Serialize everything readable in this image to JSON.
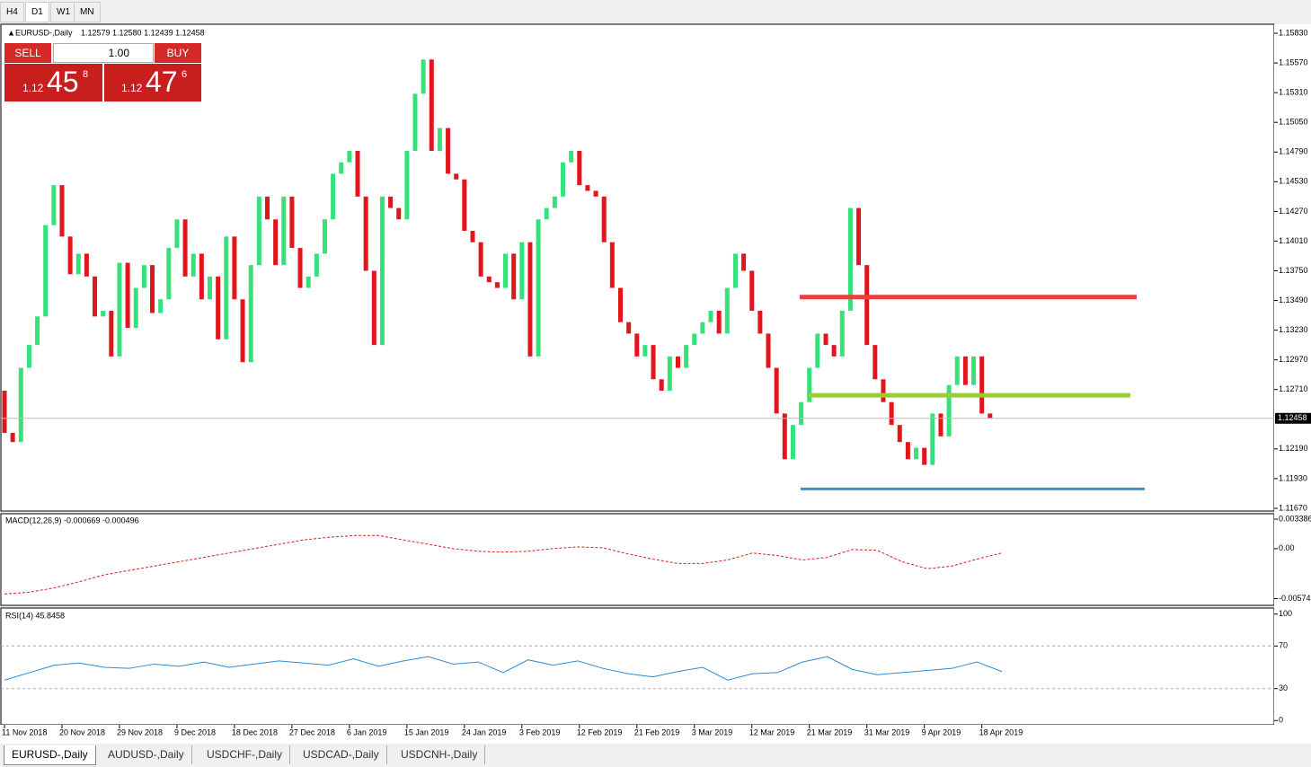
{
  "toolbar": {
    "timeframes": [
      "H4",
      "D1",
      "W1",
      "MN"
    ]
  },
  "trade_panel": {
    "sell": "SELL",
    "buy": "BUY",
    "lot": "1.00",
    "sell_prefix": "1.12",
    "sell_big": "45",
    "sell_sup": "8",
    "buy_prefix": "1.12",
    "buy_big": "47",
    "buy_sup": "6"
  },
  "tabs": [
    "EURUSD-,Daily",
    "AUDUSD-,Daily",
    "USDCHF-,Daily",
    "USDCAD-,Daily",
    "USDCNH-,Daily"
  ],
  "chart_data": [
    {
      "type": "candlestick",
      "title": "EURUSD-,Daily",
      "info": "1.12579 1.12580 1.12439 1.12458",
      "up_color": "#33e27a",
      "down_color": "#e0161c",
      "categories": [
        "11 Nov 2018",
        null,
        null,
        null,
        null,
        null,
        null,
        "20 Nov 2018",
        null,
        null,
        null,
        null,
        null,
        null,
        "29 Nov 2018",
        null,
        null,
        null,
        null,
        null,
        null,
        "9 Dec 2018",
        null,
        null,
        null,
        null,
        null,
        null,
        "18 Dec 2018",
        null,
        null,
        null,
        null,
        null,
        null,
        "27 Dec 2018",
        null,
        null,
        null,
        null,
        null,
        null,
        "6 Jan 2019",
        null,
        null,
        null,
        null,
        null,
        null,
        "15 Jan 2019",
        null,
        null,
        null,
        null,
        null,
        null,
        "24 Jan 2019",
        null,
        null,
        null,
        null,
        null,
        null,
        "3 Feb 2019",
        null,
        null,
        null,
        null,
        null,
        null,
        "12 Feb 2019",
        null,
        null,
        null,
        null,
        null,
        null,
        "21 Feb 2019",
        null,
        null,
        null,
        null,
        null,
        null,
        "3 Mar 2019",
        null,
        null,
        null,
        null,
        null,
        null,
        "12 Mar 2019",
        null,
        null,
        null,
        null,
        null,
        null,
        "21 Mar 2019",
        null,
        null,
        null,
        null,
        null,
        null,
        "31 Mar 2019",
        null,
        null,
        null,
        null,
        null,
        null,
        "9 Apr 2019",
        null,
        null,
        null,
        null,
        null,
        null,
        "18 Apr 2019",
        null
      ],
      "open": [
        1.127,
        1.1233,
        1.1225,
        1.129,
        1.131,
        1.1335,
        1.1415,
        1.145,
        1.1405,
        1.1372,
        1.139,
        1.137,
        1.1335,
        1.134,
        1.13,
        1.1382,
        1.1325,
        1.136,
        1.138,
        1.1338,
        1.135,
        1.1395,
        1.142,
        1.137,
        1.139,
        1.135,
        1.137,
        1.1315,
        1.1405,
        1.135,
        1.1295,
        1.138,
        1.144,
        1.142,
        1.138,
        1.144,
        1.1395,
        1.136,
        1.137,
        1.139,
        1.142,
        1.146,
        1.147,
        1.148,
        1.144,
        1.1375,
        1.131,
        1.144,
        1.143,
        1.142,
        1.148,
        1.153,
        1.156,
        1.148,
        1.15,
        1.146,
        1.1455,
        1.141,
        1.14,
        1.137,
        1.1365,
        1.136,
        1.139,
        1.135,
        1.14,
        1.13,
        1.142,
        1.143,
        1.144,
        1.147,
        1.148,
        1.145,
        1.1445,
        1.144,
        1.14,
        1.136,
        1.133,
        1.132,
        1.13,
        1.131,
        1.128,
        1.127,
        1.13,
        1.129,
        1.131,
        1.132,
        1.133,
        1.134,
        1.132,
        1.136,
        1.139,
        1.1375,
        1.134,
        1.132,
        1.129,
        1.125,
        1.121,
        1.124,
        1.126,
        1.129,
        1.132,
        1.131,
        1.13,
        1.134,
        1.143,
        1.138,
        1.131,
        1.128,
        1.126,
        1.124,
        1.1225,
        1.121,
        1.122,
        1.1205,
        1.125,
        1.123,
        1.1275,
        1.13,
        1.1275,
        1.13,
        1.125
      ],
      "close": [
        1.1233,
        1.1225,
        1.129,
        1.131,
        1.1335,
        1.1415,
        1.145,
        1.1405,
        1.1372,
        1.139,
        1.137,
        1.1335,
        1.134,
        1.13,
        1.1382,
        1.1325,
        1.136,
        1.138,
        1.1338,
        1.135,
        1.1395,
        1.142,
        1.137,
        1.139,
        1.135,
        1.137,
        1.1315,
        1.1405,
        1.135,
        1.1295,
        1.138,
        1.144,
        1.142,
        1.138,
        1.144,
        1.1395,
        1.136,
        1.137,
        1.139,
        1.142,
        1.146,
        1.147,
        1.148,
        1.144,
        1.1375,
        1.131,
        1.144,
        1.143,
        1.142,
        1.148,
        1.153,
        1.156,
        1.148,
        1.15,
        1.146,
        1.1455,
        1.141,
        1.14,
        1.137,
        1.1365,
        1.136,
        1.139,
        1.135,
        1.14,
        1.13,
        1.142,
        1.143,
        1.144,
        1.147,
        1.148,
        1.145,
        1.1445,
        1.144,
        1.14,
        1.136,
        1.133,
        1.132,
        1.13,
        1.131,
        1.128,
        1.127,
        1.13,
        1.129,
        1.131,
        1.132,
        1.133,
        1.134,
        1.132,
        1.136,
        1.139,
        1.1375,
        1.134,
        1.132,
        1.129,
        1.125,
        1.121,
        1.124,
        1.126,
        1.129,
        1.132,
        1.131,
        1.13,
        1.134,
        1.143,
        1.138,
        1.131,
        1.128,
        1.126,
        1.124,
        1.1225,
        1.121,
        1.122,
        1.1205,
        1.125,
        1.123,
        1.1275,
        1.13,
        1.1275,
        1.13,
        1.125,
        1.1246
      ],
      "ylim": [
        1.11654,
        1.15901
      ],
      "yticks": [
        {
          "value": 1.1583,
          "label": "1.15830"
        },
        {
          "value": 1.1557,
          "label": "1.15570"
        },
        {
          "value": 1.1531,
          "label": "1.15310"
        },
        {
          "value": 1.1505,
          "label": "1.15050"
        },
        {
          "value": 1.1479,
          "label": "1.14790"
        },
        {
          "value": 1.1453,
          "label": "1.14530"
        },
        {
          "value": 1.1427,
          "label": "1.14270"
        },
        {
          "value": 1.1401,
          "label": "1.14010"
        },
        {
          "value": 1.1375,
          "label": "1.13750"
        },
        {
          "value": 1.1349,
          "label": "1.13490"
        },
        {
          "value": 1.1323,
          "label": "1.13230"
        },
        {
          "value": 1.1297,
          "label": "1.12970"
        },
        {
          "value": 1.1271,
          "label": "1.12710"
        },
        {
          "value": 1.1219,
          "label": "1.12190"
        },
        {
          "value": 1.1193,
          "label": "1.11930"
        },
        {
          "value": 1.1167,
          "label": "1.11670"
        }
      ],
      "current_price": {
        "value": 1.12458,
        "label": "1.12458"
      },
      "levels": [
        {
          "value": 1.1352,
          "color": "#e8403c"
        },
        {
          "value": 1.1266,
          "color": "#9acd32"
        },
        {
          "value": 1.1184,
          "color": "#3a8fd6"
        }
      ]
    },
    {
      "type": "line",
      "title": "MACD(12,26,9) -0.000669 -0.000496",
      "color": "#d42020",
      "values": [
        -0.0052,
        -0.005,
        -0.0045,
        -0.0038,
        -0.003,
        -0.0025,
        -0.002,
        -0.0015,
        -0.001,
        -0.0005,
        0.0,
        0.0005,
        0.001,
        0.0013,
        0.0015,
        0.0015,
        0.001,
        0.0005,
        0.0,
        -0.0003,
        -0.0004,
        -0.0003,
        0.0,
        0.0002,
        0.0001,
        -0.0006,
        -0.0012,
        -0.0017,
        -0.0017,
        -0.0013,
        -0.0005,
        -0.0008,
        -0.0013,
        -0.001,
        -0.0001,
        -0.0002,
        -0.0015,
        -0.0023,
        -0.002,
        -0.0012,
        -0.0005
      ],
      "ylim": [
        -0.0064,
        0.0039
      ],
      "yticks": [
        0.003386,
        {
          "value": 0,
          "label": "0.00"
        },
        -0.00574
      ]
    },
    {
      "type": "line",
      "title": "RSI(14) 45.8458",
      "color": "#2a8bd6",
      "values": [
        38,
        45,
        52,
        54,
        50,
        49,
        53,
        51,
        55,
        50,
        53,
        56,
        54,
        52,
        58,
        51,
        56,
        60,
        53,
        55,
        45,
        57,
        52,
        56,
        49,
        44,
        41,
        46,
        50,
        38,
        44,
        45,
        55,
        60,
        48,
        43,
        45,
        47,
        49,
        55,
        46
      ],
      "ylim": [
        -4,
        104
      ],
      "yticks": [
        100,
        70,
        30,
        0
      ]
    }
  ]
}
